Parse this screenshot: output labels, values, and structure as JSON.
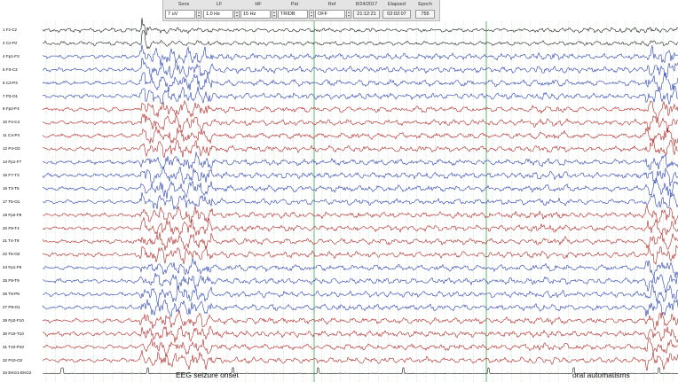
{
  "toolbar": {
    "sens": {
      "label": "Sens",
      "value": "7 uV"
    },
    "lf": {
      "label": "LF",
      "value": "1.0 Hz"
    },
    "hf": {
      "label": "HF",
      "value": "15 Hz"
    },
    "pat": {
      "label": "Pat",
      "value": "TRIDB"
    },
    "ref": {
      "label": "Ref",
      "value": "OFF"
    },
    "date": {
      "label": "8/24/2017",
      "value": "21:12:21"
    },
    "elapsed": {
      "label": "Elapsed",
      "value": "02:02:07"
    },
    "epoch": {
      "label": "Epoch",
      "value": "755"
    }
  },
  "channels": [
    {
      "label": "1 Fz-Cz",
      "color": "#1f1f1f"
    },
    {
      "label": "2 Cz-Pz",
      "color": "#1f1f1f"
    },
    {
      "label": "4 Fp1-F3",
      "color": "#2a3fb0"
    },
    {
      "label": "5 F3-C3",
      "color": "#2a3fb0"
    },
    {
      "label": "6 C3-P3",
      "color": "#2a3fb0"
    },
    {
      "label": "7 P3-O1",
      "color": "#2a3fb0"
    },
    {
      "label": "9 Fp2-F4",
      "color": "#b22424"
    },
    {
      "label": "10 F4-C4",
      "color": "#b22424"
    },
    {
      "label": "11 C4-P4",
      "color": "#b22424"
    },
    {
      "label": "12 P4-O2",
      "color": "#b22424"
    },
    {
      "label": "14 Fp1-F7",
      "color": "#2a3fb0"
    },
    {
      "label": "15 F7-T3",
      "color": "#2a3fb0"
    },
    {
      "label": "16 T3-T5",
      "color": "#2a3fb0"
    },
    {
      "label": "17 T5-O1",
      "color": "#2a3fb0"
    },
    {
      "label": "19 Fp2-F8",
      "color": "#b22424"
    },
    {
      "label": "20 F8-T4",
      "color": "#b22424"
    },
    {
      "label": "21 T4-T6",
      "color": "#b22424"
    },
    {
      "label": "22 T6-O2",
      "color": "#b22424"
    },
    {
      "label": "24 Fp1-F9",
      "color": "#2a3fb0"
    },
    {
      "label": "25 F9-T9",
      "color": "#2a3fb0"
    },
    {
      "label": "26 T9-P9",
      "color": "#2a3fb0"
    },
    {
      "label": "27 P9-O1",
      "color": "#2a3fb0"
    },
    {
      "label": "29 Fp2-F10",
      "color": "#b22424"
    },
    {
      "label": "30 F10-T10",
      "color": "#b22424"
    },
    {
      "label": "31 T10-P10",
      "color": "#b22424"
    },
    {
      "label": "32 P10-O2",
      "color": "#b22424"
    },
    {
      "label": "34 EKG1-EKG2",
      "color": "#1f1f1f"
    }
  ],
  "annotations": {
    "onset": "EEG seizure onset",
    "oral": "oral automatisms"
  },
  "colors": {
    "left_chain": "#2a3fb0",
    "right_chain": "#b22424",
    "midline": "#1f1f1f",
    "second_marker": "#3aa04a",
    "grid": "#9bd19b"
  }
}
